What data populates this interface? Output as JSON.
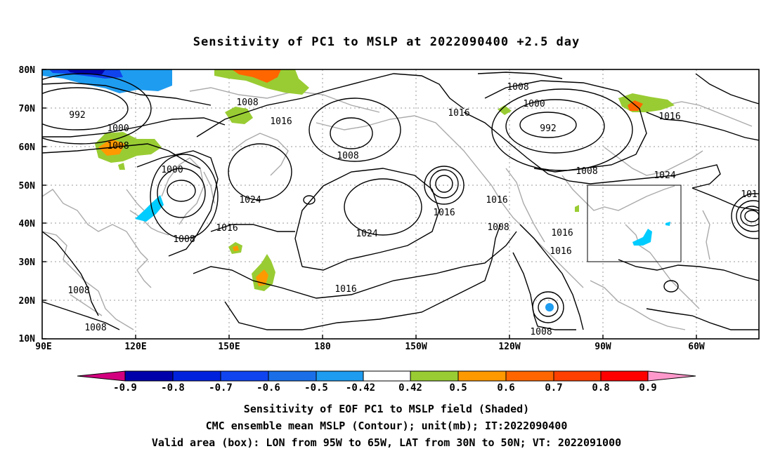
{
  "title": "Sensitivity of PC1 to MSLP at 2022090400 +2.5 day",
  "lat_labels": [
    "80N",
    "70N",
    "60N",
    "50N",
    "40N",
    "30N",
    "20N",
    "10N"
  ],
  "lon_labels": [
    "90E",
    "120E",
    "150E",
    "180",
    "150W",
    "120W",
    "90W",
    "60W"
  ],
  "contour_labels": [
    "992",
    "1000",
    "1008",
    "1008",
    "1016",
    "1000",
    "1024",
    "1008",
    "1016",
    "1024",
    "1016",
    "1016",
    "1008",
    "1016",
    "1016",
    "1016",
    "1008",
    "1000",
    "992",
    "1008",
    "1024",
    "1016",
    "101",
    "1008",
    "1008",
    "1016"
  ],
  "colorbar": {
    "labels": [
      "-0.9",
      "-0.8",
      "-0.7",
      "-0.6",
      "-0.5",
      "-0.42",
      "0.42",
      "0.5",
      "0.6",
      "0.7",
      "0.8",
      "0.9"
    ],
    "colors": [
      "#d2007e",
      "#0000aa",
      "#0022dd",
      "#1044ee",
      "#1a6fe8",
      "#1e9cf0",
      "#00ccff",
      "#ffffff",
      "#99cc33",
      "#ff9900",
      "#ff6600",
      "#ff4000",
      "#ff0000",
      "#ff99cc"
    ]
  },
  "caption": {
    "line1": "Sensitivity of EOF PC1 to MSLP field (Shaded)",
    "line2": "CMC ensemble mean MSLP (Contour); unit(mb); IT:2022090400",
    "line3": "Valid area (box): LON from 95W to 65W, LAT from 30N to 50N; VT: 2022091000"
  }
}
